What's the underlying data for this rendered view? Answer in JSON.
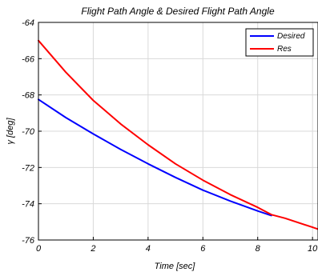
{
  "chart_data": {
    "type": "line",
    "title": "Flight Path Angle & Desired Flight Path Angle",
    "xlabel": "Time [sec]",
    "ylabel": "γ [deg]",
    "xlim": [
      0,
      10.2
    ],
    "ylim": [
      -76,
      -64
    ],
    "xticks": [
      0,
      2,
      4,
      6,
      8,
      10
    ],
    "yticks": [
      -64,
      -66,
      -68,
      -70,
      -72,
      -74,
      -76
    ],
    "grid": true,
    "legend_position": "top-right",
    "series": [
      {
        "name": "Desired",
        "color": "#0000ff",
        "x": [
          0,
          1,
          2,
          3,
          4,
          5,
          6,
          7,
          8,
          8.5
        ],
        "y": [
          -68.25,
          -69.25,
          -70.15,
          -71.0,
          -71.8,
          -72.55,
          -73.25,
          -73.85,
          -74.4,
          -74.65
        ]
      },
      {
        "name": "Res",
        "color": "#ff0000",
        "x": [
          0,
          1,
          2,
          3,
          4,
          5,
          6,
          7,
          8,
          8.5,
          9,
          10,
          10.2
        ],
        "y": [
          -65.0,
          -66.75,
          -68.3,
          -69.6,
          -70.75,
          -71.8,
          -72.7,
          -73.5,
          -74.2,
          -74.6,
          -74.8,
          -75.3,
          -75.4
        ]
      }
    ]
  }
}
